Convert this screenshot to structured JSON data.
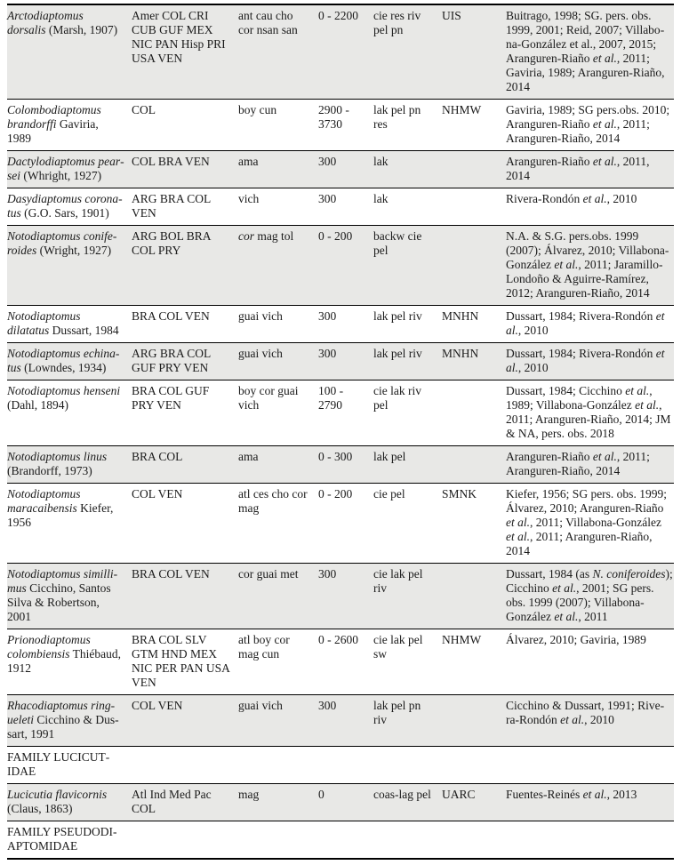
{
  "page": {
    "background": "#ffffff",
    "shaded_row_color": "#e8e8e6",
    "rule_color": "#000000",
    "text_color": "#1b1b1b"
  },
  "table": {
    "column_keys": [
      "species",
      "countries",
      "locations",
      "altitude_m",
      "habitats",
      "museum",
      "references"
    ],
    "rows": [
      {
        "type": "species",
        "shaded": true,
        "species": [
          {
            "text": "Arctodiaptomus dorsalis",
            "italic": true
          },
          {
            "text": " (Marsh, 1907)"
          }
        ],
        "countries": "Amer COL CRI CUB GUF MEX NIC PAN Hisp PRI USA VEN",
        "locations": [
          {
            "text": "ant cau cho cor nsan san"
          }
        ],
        "altitude_m": "0 - 2200",
        "habitats": "cie res riv pel pn",
        "museum": "UIS",
        "references": [
          {
            "text": "Buitrago, 1998; SG. pers. obs. 1999, 2001;  Reid, 2007; Villabo­na-González et al., 2007, 2015; Aranguren-Riaño "
          },
          {
            "text": "et al.",
            "italic": true
          },
          {
            "text": ", 2011; Gaviria, 1989; Aranguren-Ria­ño, 2014"
          }
        ]
      },
      {
        "type": "species",
        "shaded": false,
        "species": [
          {
            "text": "Colombodiaptomus brandorffi",
            "italic": true
          },
          {
            "text": " Gaviria, 1989"
          }
        ],
        "countries": "COL",
        "locations": [
          {
            "text": "boy cun"
          }
        ],
        "altitude_m": "2900 - 3730",
        "habitats": "lak pel pn res",
        "museum": "NHMW",
        "references": [
          {
            "text": "Gaviria, 1989; SG pers.obs. 2010; Aranguren-Riaño "
          },
          {
            "text": "et al.",
            "italic": true
          },
          {
            "text": ", 2011; Aranguren-Riaño, 2014"
          }
        ]
      },
      {
        "type": "species",
        "shaded": true,
        "species": [
          {
            "text": "Dactylodiaptomus pear­sei",
            "italic": true
          },
          {
            "text": " (Whright, 1927)"
          }
        ],
        "countries": "COL BRA VEN",
        "locations": [
          {
            "text": "ama"
          }
        ],
        "altitude_m": "300",
        "habitats": "lak",
        "museum": "",
        "references": [
          {
            "text": "Aranguren-Riaño "
          },
          {
            "text": "et al.",
            "italic": true
          },
          {
            "text": ", 2011, 2014"
          }
        ]
      },
      {
        "type": "species",
        "shaded": false,
        "species": [
          {
            "text": "Dasydiaptomus corona­tus",
            "italic": true
          },
          {
            "text": " (G.O. Sars, 1901)"
          }
        ],
        "countries": "ARG BRA COL VEN",
        "locations": [
          {
            "text": "vich"
          }
        ],
        "altitude_m": "300",
        "habitats": "lak",
        "museum": "",
        "references": [
          {
            "text": "Rivera-Rondón "
          },
          {
            "text": "et al.",
            "italic": true
          },
          {
            "text": ", 2010"
          }
        ]
      },
      {
        "type": "species",
        "shaded": true,
        "species": [
          {
            "text": "Notodiaptomus conife­roides",
            "italic": true
          },
          {
            "text": " (Wright, 1927)"
          }
        ],
        "countries": "ARG BOL BRA COL PRY",
        "locations": [
          {
            "text": "cor",
            "italic": true
          },
          {
            "text": " mag tol"
          }
        ],
        "altitude_m": "0 - 200",
        "habitats": "backw cie pel",
        "museum": "",
        "references": [
          {
            "text": "N.A. & S.G. pers.obs. 1999 (2007); Álvarez, 2010; Villabo­na-González "
          },
          {
            "text": "et al.",
            "italic": true
          },
          {
            "text": ", 2011; Jara­millo-Londoño & Aguirre-Ra­mírez, 2012; Aranguren-Riaño, 2014"
          }
        ]
      },
      {
        "type": "species",
        "shaded": false,
        "species": [
          {
            "text": "Notodiaptomus dilatatus",
            "italic": true
          },
          {
            "text": " Dussart, 1984"
          }
        ],
        "countries": "BRA COL VEN",
        "locations": [
          {
            "text": "guai vich"
          }
        ],
        "altitude_m": "300",
        "habitats": "lak pel riv",
        "museum": "MNHN",
        "references": [
          {
            "text": "Dussart, 1984; Rivera-Rondón "
          },
          {
            "text": "et al.",
            "italic": true
          },
          {
            "text": ", 2010"
          }
        ]
      },
      {
        "type": "species",
        "shaded": true,
        "species": [
          {
            "text": "Notodiaptomus echina­tus",
            "italic": true
          },
          {
            "text": " (Lowndes, 1934)"
          }
        ],
        "countries": "ARG BRA COL GUF PRY VEN",
        "locations": [
          {
            "text": "guai vich"
          }
        ],
        "altitude_m": "300",
        "habitats": "lak pel riv",
        "museum": "MNHN",
        "references": [
          {
            "text": "Dussart, 1984; Rivera-Rondón "
          },
          {
            "text": "et al.",
            "italic": true
          },
          {
            "text": ", 2010"
          }
        ]
      },
      {
        "type": "species",
        "shaded": false,
        "species": [
          {
            "text": "Notodiaptomus henseni",
            "italic": true
          },
          {
            "text": " (Dahl, 1894)"
          }
        ],
        "countries": "BRA COL GUF PRY VEN",
        "locations": [
          {
            "text": "boy cor guai vich"
          }
        ],
        "altitude_m": "100 - 2790",
        "habitats": "cie lak riv pel",
        "museum": "",
        "references": [
          {
            "text": "Dussart, 1984; Cicchino "
          },
          {
            "text": "et al.",
            "italic": true
          },
          {
            "text": ", 1989; Villabona-González "
          },
          {
            "text": "et al.",
            "italic": true
          },
          {
            "text": ", 2011; Aranguren-Riaño, 2014; JM & NA, pers. obs. 2018"
          }
        ]
      },
      {
        "type": "species",
        "shaded": true,
        "species": [
          {
            "text": "Notodiaptomus linus",
            "italic": true
          },
          {
            "text": " (Brandorff, 1973)"
          }
        ],
        "countries": "BRA COL",
        "locations": [
          {
            "text": "ama"
          }
        ],
        "altitude_m": "0 - 300",
        "habitats": "lak pel",
        "museum": "",
        "references": [
          {
            "text": "Aranguren-Riaño "
          },
          {
            "text": "et al.",
            "italic": true
          },
          {
            "text": ", 2011; Aranguren-Riaño, 2014"
          }
        ]
      },
      {
        "type": "species",
        "shaded": false,
        "species": [
          {
            "text": "Notodiaptomus maracai­bensis",
            "italic": true
          },
          {
            "text": " Kiefer, 1956"
          }
        ],
        "countries": "COL VEN",
        "locations": [
          {
            "text": "atl ces cho cor mag"
          }
        ],
        "altitude_m": "0 - 200",
        "habitats": "cie pel",
        "museum": "SMNK",
        "references": [
          {
            "text": "Kiefer, 1956; SG pers. obs. 1999; Álvarez, 2010; Aranguren-Ria­ño "
          },
          {
            "text": "et al.",
            "italic": true
          },
          {
            "text": ", 2011; Villabona-Gonzá­lez "
          },
          {
            "text": "et al.",
            "italic": true
          },
          {
            "text": ", 2011; Aranguren-Ria­ño, 2014"
          }
        ]
      },
      {
        "type": "species",
        "shaded": true,
        "species": [
          {
            "text": "Notodiaptomus similli­mus",
            "italic": true
          },
          {
            "text": " Cicchino, Santos Silva & Robertson, 2001"
          }
        ],
        "countries": "BRA COL VEN",
        "locations": [
          {
            "text": "cor guai met"
          }
        ],
        "altitude_m": "300",
        "habitats": "cie lak pel riv",
        "museum": "",
        "references": [
          {
            "text": "Dussart, 1984 (as "
          },
          {
            "text": "N. coniferoi­des",
            "italic": true
          },
          {
            "text": "); Cicchino "
          },
          {
            "text": "et al.",
            "italic": true
          },
          {
            "text": ", 2001; SG pers. obs. 1999 (2007); Villabo­na-González "
          },
          {
            "text": "et al.",
            "italic": true
          },
          {
            "text": ", 2011"
          }
        ]
      },
      {
        "type": "species",
        "shaded": false,
        "species": [
          {
            "text": "Prionodiaptomus colom­biensis",
            "italic": true
          },
          {
            "text": " Thiébaud, 1912"
          }
        ],
        "countries": "BRA COL SLV GTM HND MEX NIC PER PAN USA VEN",
        "locations": [
          {
            "text": "atl boy cor mag cun"
          }
        ],
        "altitude_m": "0 - 2600",
        "habitats": "cie lak pel sw",
        "museum": "NHMW",
        "references": [
          {
            "text": "Álvarez, 2010; Gaviria, 1989"
          }
        ]
      },
      {
        "type": "species",
        "shaded": true,
        "species": [
          {
            "text": "Rhacodiaptomus ring­ueleti",
            "italic": true
          },
          {
            "text": " Cicchino & Dus­sart, 1991"
          }
        ],
        "countries": "COL VEN",
        "locations": [
          {
            "text": "guai vich"
          }
        ],
        "altitude_m": "300",
        "habitats": "lak pel pn riv",
        "museum": "",
        "references": [
          {
            "text": "Cicchino & Dussart, 1991; Rive­ra-Rondón "
          },
          {
            "text": "et al.",
            "italic": true
          },
          {
            "text": ", 2010"
          }
        ]
      },
      {
        "type": "family",
        "shaded": false,
        "label": "FAMILY LUCICUT­IDAE"
      },
      {
        "type": "species",
        "shaded": true,
        "species": [
          {
            "text": "Lucicutia flavicornis",
            "italic": true
          },
          {
            "text": " (Claus, 1863)"
          }
        ],
        "countries": "Atl Ind Med Pac COL",
        "locations": [
          {
            "text": "mag"
          }
        ],
        "altitude_m": "0",
        "habitats": "coas-lag pel",
        "museum": "UARC",
        "references": [
          {
            "text": "Fuentes-Reinés "
          },
          {
            "text": "et al.",
            "italic": true
          },
          {
            "text": ", 2013"
          }
        ]
      },
      {
        "type": "family",
        "shaded": false,
        "label": "FAMILY PSEUDODI­APTOMIDAE"
      }
    ]
  }
}
